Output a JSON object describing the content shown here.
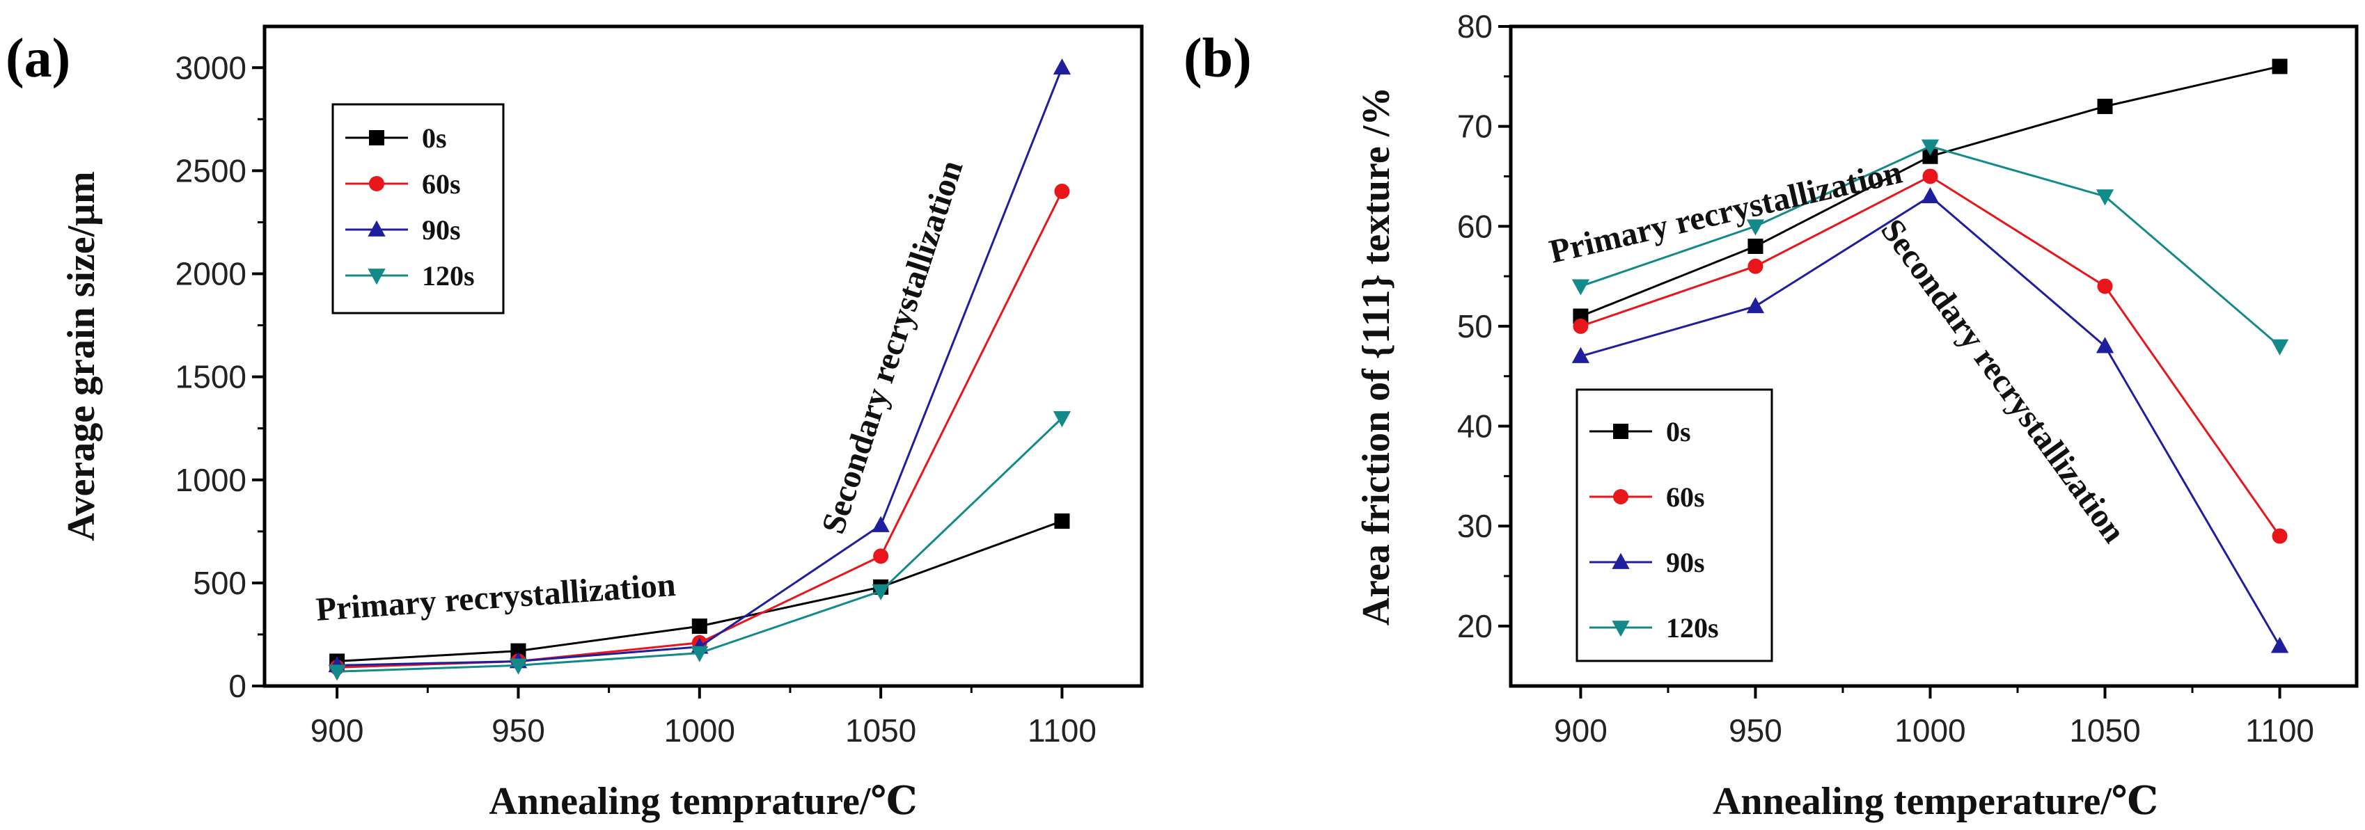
{
  "colors": {
    "0s": "#000000",
    "60s": "#e8151b",
    "90s": "#1f1f9e",
    "120s": "#138a8a"
  },
  "chart_data": [
    {
      "panel_label": "(a)",
      "type": "line",
      "xlabel": "Annealing temprature/℃",
      "ylabel": "Average grain size/μm",
      "x": [
        900,
        950,
        1000,
        1050,
        1100
      ],
      "xticks": [
        "900",
        "950",
        "1000",
        "1050",
        "1100"
      ],
      "xlim": [
        880,
        1122
      ],
      "yticks": [
        "0",
        "500",
        "1000",
        "1500",
        "2000",
        "2500",
        "3000"
      ],
      "ylim": [
        0,
        3200
      ],
      "legend_position": "upper-left",
      "series": [
        {
          "name": "0s",
          "marker": "square",
          "values": [
            120,
            170,
            290,
            480,
            800
          ]
        },
        {
          "name": "60s",
          "marker": "circle",
          "values": [
            90,
            120,
            210,
            630,
            2400
          ]
        },
        {
          "name": "90s",
          "marker": "triangle-up",
          "values": [
            100,
            120,
            190,
            780,
            3000
          ]
        },
        {
          "name": "120s",
          "marker": "triangle-down",
          "values": [
            70,
            100,
            160,
            460,
            1300
          ]
        }
      ],
      "annotations": [
        {
          "text": "Primary recrystallization"
        },
        {
          "text": "Secondary  recrystallization"
        }
      ]
    },
    {
      "panel_label": "(b)",
      "type": "line",
      "xlabel": "Annealing temperature/℃",
      "ylabel": "Area friction of {111} texture /%",
      "x": [
        900,
        950,
        1000,
        1050,
        1100
      ],
      "xticks": [
        "900",
        "950",
        "1000",
        "1050",
        "1100"
      ],
      "xlim": [
        880,
        1122
      ],
      "yticks": [
        "20",
        "30",
        "40",
        "50",
        "60",
        "70",
        "80"
      ],
      "ylim": [
        14,
        80
      ],
      "legend_position": "lower-left",
      "series": [
        {
          "name": "0s",
          "marker": "square",
          "values": [
            51,
            58,
            67,
            72,
            76
          ]
        },
        {
          "name": "60s",
          "marker": "circle",
          "values": [
            50,
            56,
            65,
            54,
            29
          ]
        },
        {
          "name": "90s",
          "marker": "triangle-up",
          "values": [
            47,
            52,
            63,
            48,
            18
          ]
        },
        {
          "name": "120s",
          "marker": "triangle-down",
          "values": [
            54,
            60,
            68,
            63,
            48
          ]
        }
      ],
      "annotations": [
        {
          "text": "Primary recrystallization"
        },
        {
          "text": "Secondary  recrystallization"
        }
      ]
    }
  ]
}
